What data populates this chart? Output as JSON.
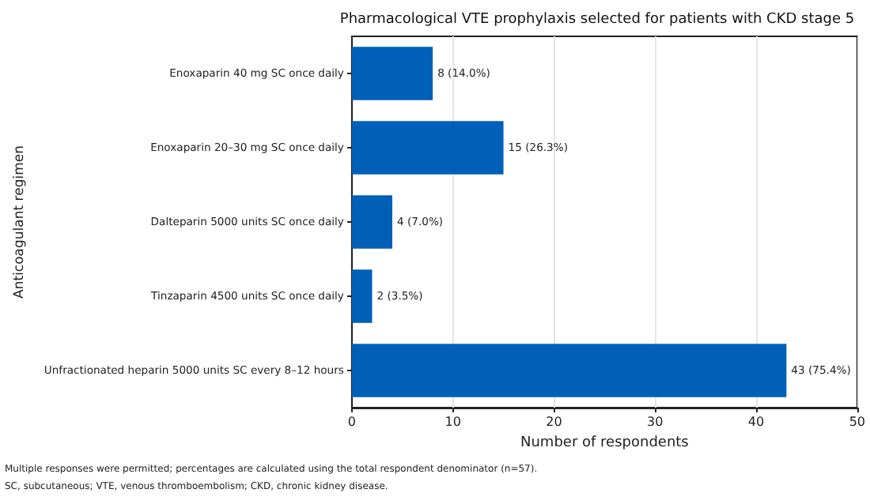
{
  "chart_data": {
    "type": "bar",
    "orientation": "horizontal",
    "title": "Pharmacological VTE prophylaxis selected for patients with CKD stage 5",
    "xlabel": "Number of respondents",
    "ylabel": "Anticoagulant regimen",
    "categories": [
      "Enoxaparin 40 mg SC once daily",
      "Enoxaparin 20–30 mg SC once daily",
      "Dalteparin 5000 units SC once daily",
      "Tinzaparin 4500 units SC once daily",
      "Unfractionated heparin 5000 units SC every 8–12 hours"
    ],
    "values": [
      8,
      15,
      4,
      2,
      43
    ],
    "color": "#0060b8",
    "value_labels": [
      "8 (14.0%)",
      "15 (26.3%)",
      "4 (7.0%)",
      "2 (3.5%)",
      "43 (75.4%)"
    ],
    "xlim": [
      0,
      50
    ],
    "xticks": [
      0,
      10,
      20,
      30,
      40,
      50
    ],
    "grid": "x",
    "annotations": [
      "Multiple responses were permitted; percentages are calculated using the total respondent denominator (n=57).",
      "SC, subcutaneous; VTE, venous thromboembolism; CKD, chronic kidney disease."
    ]
  }
}
